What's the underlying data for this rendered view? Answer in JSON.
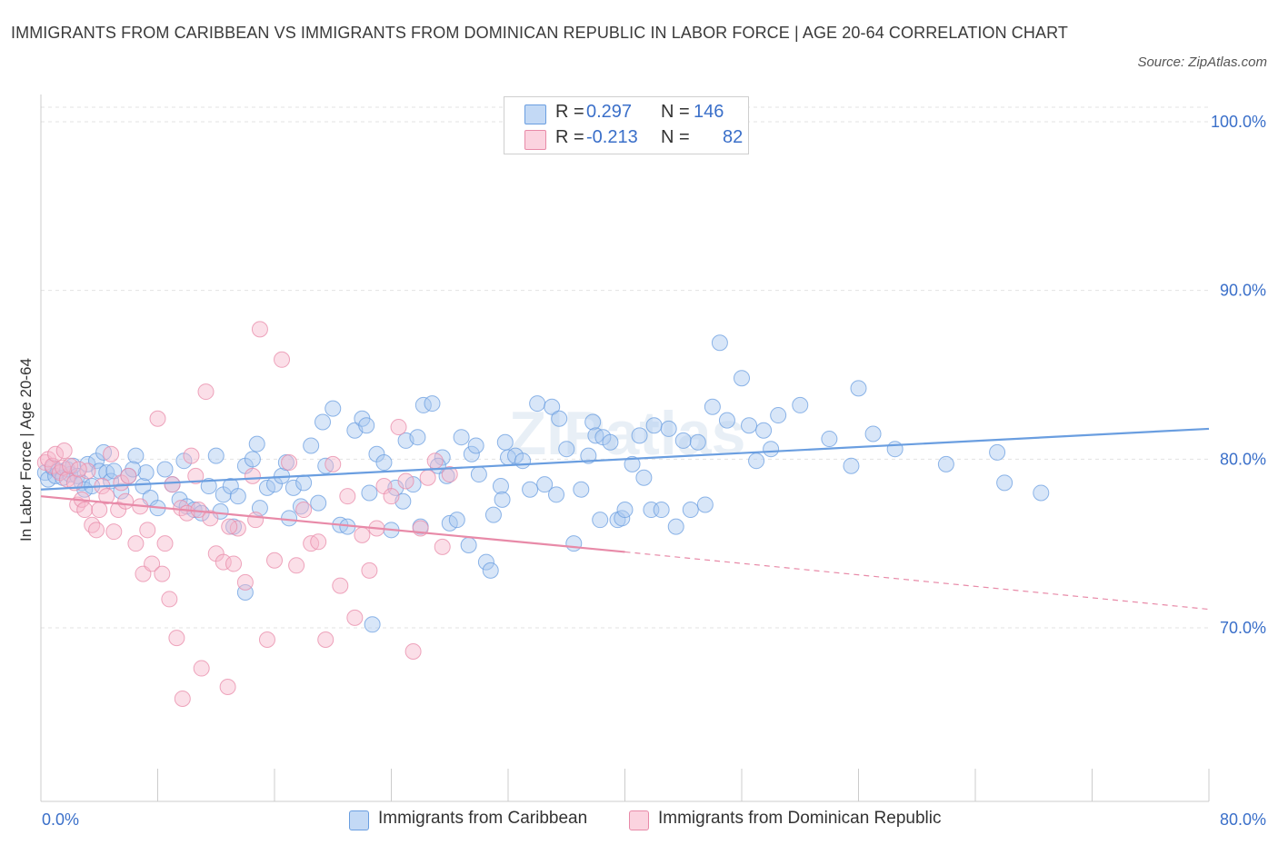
{
  "title": "IMMIGRANTS FROM CARIBBEAN VS IMMIGRANTS FROM DOMINICAN REPUBLIC IN LABOR FORCE | AGE 20-64 CORRELATION CHART",
  "source": "Source: ZipAtlas.com",
  "watermark": "ZIPatlas",
  "legend_stats": [
    {
      "r_label": "R =",
      "r_value": "0.297",
      "n_label": "N =",
      "n_value": "146",
      "color": "#a8c8f0",
      "border": "#6a9ee0"
    },
    {
      "r_label": "R =",
      "r_value": "-0.213",
      "n_label": "N =",
      "n_value": "82",
      "color": "#f7b9cc",
      "border": "#e88aa8"
    }
  ],
  "chart_data": {
    "type": "scatter",
    "title": "IMMIGRANTS FROM CARIBBEAN VS IMMIGRANTS FROM DOMINICAN REPUBLIC IN LABOR FORCE | AGE 20-64 CORRELATION CHART",
    "xlabel": "",
    "ylabel": "In Labor Force | Age 20-64",
    "xlim": [
      0,
      80
    ],
    "ylim": [
      60,
      100
    ],
    "x_tick_labels": [
      "0.0%",
      "80.0%"
    ],
    "y_ticks": [
      70,
      80,
      90,
      100
    ],
    "y_tick_labels": [
      "70.0%",
      "80.0%",
      "90.0%",
      "100.0%"
    ],
    "grid": "horizontal dashed",
    "legend_position": "bottom",
    "series": [
      {
        "name": "Immigrants from Caribbean",
        "color": "#6a9ee0",
        "fill": "#a8c8f0",
        "trend": {
          "x0": 0,
          "y0": 78.2,
          "x1": 80,
          "y1": 81.8,
          "dashed_from": null
        },
        "points": [
          [
            0.3,
            79.2
          ],
          [
            0.5,
            78.8
          ],
          [
            0.8,
            79.5
          ],
          [
            1.0,
            79.0
          ],
          [
            1.2,
            79.3
          ],
          [
            1.5,
            78.9
          ],
          [
            1.8,
            79.4
          ],
          [
            2.0,
            79.1
          ],
          [
            2.2,
            79.6
          ],
          [
            2.5,
            79.0
          ],
          [
            2.8,
            78.6
          ],
          [
            3.0,
            78.2
          ],
          [
            3.2,
            79.7
          ],
          [
            3.5,
            78.4
          ],
          [
            3.8,
            79.9
          ],
          [
            4.0,
            79.3
          ],
          [
            4.3,
            80.4
          ],
          [
            4.5,
            79.2
          ],
          [
            4.8,
            78.7
          ],
          [
            5.0,
            79.3
          ],
          [
            5.5,
            78.1
          ],
          [
            6.0,
            79.0
          ],
          [
            6.5,
            80.2
          ],
          [
            7.0,
            78.4
          ],
          [
            7.2,
            79.2
          ],
          [
            7.5,
            77.7
          ],
          [
            8.0,
            77.1
          ],
          [
            8.5,
            79.4
          ],
          [
            9.0,
            78.5
          ],
          [
            9.5,
            77.6
          ],
          [
            10.0,
            77.2
          ],
          [
            10.5,
            77.0
          ],
          [
            11.0,
            76.8
          ],
          [
            11.5,
            78.4
          ],
          [
            12.0,
            80.2
          ],
          [
            12.5,
            77.9
          ],
          [
            13.0,
            78.4
          ],
          [
            13.2,
            76.0
          ],
          [
            13.5,
            77.8
          ],
          [
            14.0,
            79.6
          ],
          [
            14.5,
            80.0
          ],
          [
            14.8,
            80.9
          ],
          [
            15.0,
            77.1
          ],
          [
            15.5,
            78.3
          ],
          [
            16.0,
            78.5
          ],
          [
            16.5,
            79.0
          ],
          [
            16.8,
            79.8
          ],
          [
            17.0,
            76.5
          ],
          [
            17.3,
            78.3
          ],
          [
            17.8,
            77.2
          ],
          [
            18.0,
            78.6
          ],
          [
            18.5,
            80.8
          ],
          [
            19.0,
            77.4
          ],
          [
            19.3,
            82.2
          ],
          [
            19.5,
            79.6
          ],
          [
            20.0,
            83.0
          ],
          [
            20.5,
            76.1
          ],
          [
            21.0,
            76.0
          ],
          [
            21.5,
            81.7
          ],
          [
            22.0,
            82.4
          ],
          [
            22.3,
            82.0
          ],
          [
            22.5,
            78.0
          ],
          [
            23.0,
            80.3
          ],
          [
            23.5,
            79.8
          ],
          [
            24.0,
            75.8
          ],
          [
            24.3,
            78.3
          ],
          [
            24.8,
            77.5
          ],
          [
            25.0,
            81.1
          ],
          [
            25.5,
            78.5
          ],
          [
            25.8,
            81.3
          ],
          [
            26.0,
            76.0
          ],
          [
            26.2,
            83.2
          ],
          [
            26.8,
            83.3
          ],
          [
            27.5,
            80.1
          ],
          [
            27.8,
            79.0
          ],
          [
            28.0,
            76.2
          ],
          [
            28.5,
            76.4
          ],
          [
            28.8,
            81.3
          ],
          [
            29.3,
            74.9
          ],
          [
            29.5,
            80.3
          ],
          [
            29.8,
            80.8
          ],
          [
            30.0,
            79.1
          ],
          [
            30.5,
            73.9
          ],
          [
            30.8,
            73.4
          ],
          [
            31.0,
            76.7
          ],
          [
            31.5,
            78.4
          ],
          [
            31.8,
            81.0
          ],
          [
            32.0,
            80.1
          ],
          [
            32.5,
            80.2
          ],
          [
            33.0,
            79.9
          ],
          [
            33.5,
            78.2
          ],
          [
            34.0,
            83.3
          ],
          [
            34.5,
            78.5
          ],
          [
            35.0,
            83.1
          ],
          [
            35.3,
            77.9
          ],
          [
            35.5,
            82.4
          ],
          [
            36.0,
            80.6
          ],
          [
            36.5,
            75.0
          ],
          [
            37.0,
            78.2
          ],
          [
            37.5,
            80.2
          ],
          [
            37.8,
            82.2
          ],
          [
            38.0,
            81.4
          ],
          [
            38.5,
            81.3
          ],
          [
            39.0,
            81.0
          ],
          [
            39.5,
            76.4
          ],
          [
            39.8,
            76.5
          ],
          [
            40.0,
            77.0
          ],
          [
            40.5,
            79.7
          ],
          [
            41.0,
            81.4
          ],
          [
            41.3,
            78.9
          ],
          [
            41.8,
            77.0
          ],
          [
            42.0,
            82.0
          ],
          [
            42.5,
            77.0
          ],
          [
            43.0,
            81.8
          ],
          [
            43.5,
            76.0
          ],
          [
            44.0,
            81.1
          ],
          [
            44.5,
            77.0
          ],
          [
            45.0,
            81.0
          ],
          [
            45.5,
            77.3
          ],
          [
            46.0,
            83.1
          ],
          [
            46.5,
            86.9
          ],
          [
            47.0,
            82.3
          ],
          [
            48.0,
            84.8
          ],
          [
            48.5,
            82.0
          ],
          [
            49.0,
            79.9
          ],
          [
            49.5,
            81.7
          ],
          [
            50.0,
            80.6
          ],
          [
            50.5,
            82.6
          ],
          [
            52.0,
            83.2
          ],
          [
            54.0,
            81.2
          ],
          [
            55.5,
            79.6
          ],
          [
            56.0,
            84.2
          ],
          [
            57.0,
            81.5
          ],
          [
            58.5,
            80.6
          ],
          [
            62.0,
            79.7
          ],
          [
            65.5,
            80.4
          ],
          [
            66.0,
            78.6
          ],
          [
            68.5,
            78.0
          ],
          [
            38.3,
            76.4
          ],
          [
            27.2,
            79.6
          ],
          [
            22.7,
            70.2
          ],
          [
            14.0,
            72.1
          ],
          [
            31.6,
            77.6
          ],
          [
            12.3,
            76.9
          ],
          [
            9.8,
            79.9
          ],
          [
            6.3,
            79.4
          ]
        ]
      },
      {
        "name": "Immigrants from Dominican Republic",
        "color": "#e88aa8",
        "fill": "#f7b9cc",
        "trend": {
          "x0": 0,
          "y0": 77.8,
          "x1": 40,
          "y1": 74.5,
          "dashed_from": 40,
          "dash_end": {
            "x": 80,
            "y": 71.1
          }
        },
        "points": [
          [
            0.3,
            79.8
          ],
          [
            0.5,
            80.0
          ],
          [
            0.8,
            79.6
          ],
          [
            1.0,
            80.3
          ],
          [
            1.3,
            79.2
          ],
          [
            1.5,
            79.5
          ],
          [
            1.8,
            78.8
          ],
          [
            2.0,
            79.6
          ],
          [
            2.3,
            78.6
          ],
          [
            2.5,
            77.3
          ],
          [
            2.8,
            77.6
          ],
          [
            3.0,
            77.0
          ],
          [
            3.2,
            79.3
          ],
          [
            3.5,
            76.1
          ],
          [
            3.8,
            75.8
          ],
          [
            4.0,
            77.0
          ],
          [
            4.2,
            78.4
          ],
          [
            4.5,
            77.8
          ],
          [
            4.8,
            80.3
          ],
          [
            5.0,
            75.7
          ],
          [
            5.3,
            77.0
          ],
          [
            5.5,
            78.6
          ],
          [
            5.8,
            77.5
          ],
          [
            6.0,
            79.0
          ],
          [
            6.5,
            75.0
          ],
          [
            7.0,
            73.2
          ],
          [
            7.3,
            75.8
          ],
          [
            7.6,
            73.8
          ],
          [
            8.0,
            82.4
          ],
          [
            8.3,
            73.2
          ],
          [
            8.5,
            75.0
          ],
          [
            8.8,
            71.7
          ],
          [
            9.0,
            78.5
          ],
          [
            9.3,
            69.4
          ],
          [
            9.6,
            77.1
          ],
          [
            10.0,
            76.8
          ],
          [
            10.3,
            80.2
          ],
          [
            10.8,
            77.0
          ],
          [
            11.0,
            67.6
          ],
          [
            11.3,
            84.0
          ],
          [
            11.6,
            76.5
          ],
          [
            12.0,
            74.4
          ],
          [
            12.5,
            73.9
          ],
          [
            12.8,
            66.5
          ],
          [
            13.2,
            73.8
          ],
          [
            13.5,
            75.9
          ],
          [
            14.0,
            72.7
          ],
          [
            14.5,
            79.0
          ],
          [
            15.0,
            87.7
          ],
          [
            15.5,
            69.3
          ],
          [
            16.0,
            74.0
          ],
          [
            16.5,
            85.9
          ],
          [
            17.0,
            79.8
          ],
          [
            17.5,
            73.7
          ],
          [
            18.0,
            77.0
          ],
          [
            18.5,
            75.0
          ],
          [
            19.0,
            75.1
          ],
          [
            19.5,
            69.3
          ],
          [
            20.0,
            79.7
          ],
          [
            20.5,
            72.5
          ],
          [
            21.0,
            77.8
          ],
          [
            21.5,
            70.6
          ],
          [
            22.0,
            75.5
          ],
          [
            22.5,
            73.4
          ],
          [
            23.0,
            75.9
          ],
          [
            23.5,
            78.4
          ],
          [
            24.0,
            77.8
          ],
          [
            24.5,
            81.9
          ],
          [
            25.0,
            78.7
          ],
          [
            25.5,
            68.6
          ],
          [
            26.0,
            75.9
          ],
          [
            26.5,
            78.9
          ],
          [
            27.0,
            79.9
          ],
          [
            27.5,
            74.8
          ],
          [
            28.0,
            79.1
          ],
          [
            1.6,
            80.5
          ],
          [
            2.6,
            79.4
          ],
          [
            6.8,
            77.2
          ],
          [
            9.7,
            65.8
          ],
          [
            10.6,
            79.0
          ],
          [
            12.9,
            76.0
          ],
          [
            14.7,
            76.4
          ]
        ]
      }
    ]
  },
  "legend": [
    {
      "label": "Immigrants from Caribbean",
      "fill": "#c3d9f5",
      "border": "#6a9ee0"
    },
    {
      "label": "Immigrants from Dominican Republic",
      "fill": "#fbd3df",
      "border": "#e88aa8"
    }
  ]
}
